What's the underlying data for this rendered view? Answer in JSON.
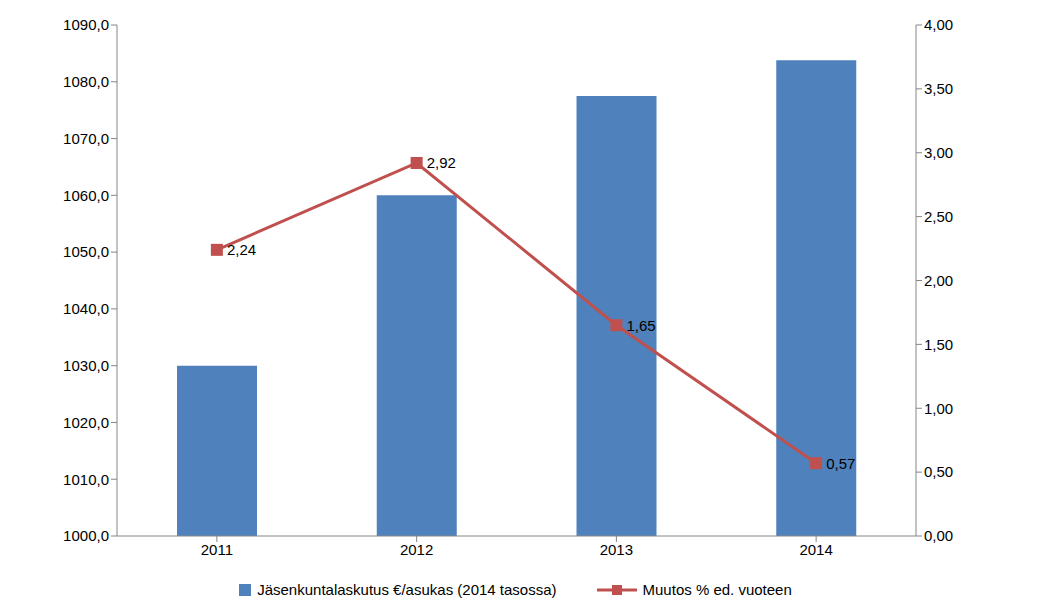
{
  "chart_data": {
    "type": "bar",
    "categories": [
      "2011",
      "2012",
      "2013",
      "2014"
    ],
    "series": [
      {
        "name": "Jäsenkuntalaskutus €/asukas (2014 tasossa)",
        "type": "bar",
        "color": "#4f81bd",
        "values": [
          1030,
          1060,
          1077.5,
          1083.8
        ]
      },
      {
        "name": "Muutos % ed. vuoteen",
        "type": "line",
        "color": "#c0504d",
        "marker": "square",
        "axis": "y2",
        "values": [
          2.24,
          2.92,
          1.65,
          0.57
        ],
        "value_labels": [
          "2,24",
          "2,92",
          "1,65",
          "0,57"
        ],
        "data_labels": true
      }
    ],
    "ylim": [
      1000,
      1090
    ],
    "yticks": [
      {
        "value": 1000,
        "label": "1000,0"
      },
      {
        "value": 1010,
        "label": "1010,0"
      },
      {
        "value": 1020,
        "label": "1020,0"
      },
      {
        "value": 1030,
        "label": "1030,0"
      },
      {
        "value": 1040,
        "label": "1040,0"
      },
      {
        "value": 1050,
        "label": "1050,0"
      },
      {
        "value": 1060,
        "label": "1060,0"
      },
      {
        "value": 1070,
        "label": "1070,0"
      },
      {
        "value": 1080,
        "label": "1080,0"
      },
      {
        "value": 1090,
        "label": "1090,0"
      }
    ],
    "y2lim": [
      0,
      4
    ],
    "y2ticks": [
      {
        "value": 0,
        "label": "0,00"
      },
      {
        "value": 0.5,
        "label": "0,50"
      },
      {
        "value": 1,
        "label": "1,00"
      },
      {
        "value": 1.5,
        "label": "1,50"
      },
      {
        "value": 2,
        "label": "2,00"
      },
      {
        "value": 2.5,
        "label": "2,50"
      },
      {
        "value": 3,
        "label": "3,00"
      },
      {
        "value": 3.5,
        "label": "3,50"
      },
      {
        "value": 4,
        "label": "4,00"
      }
    ],
    "legend": "bottom",
    "grid": false
  }
}
